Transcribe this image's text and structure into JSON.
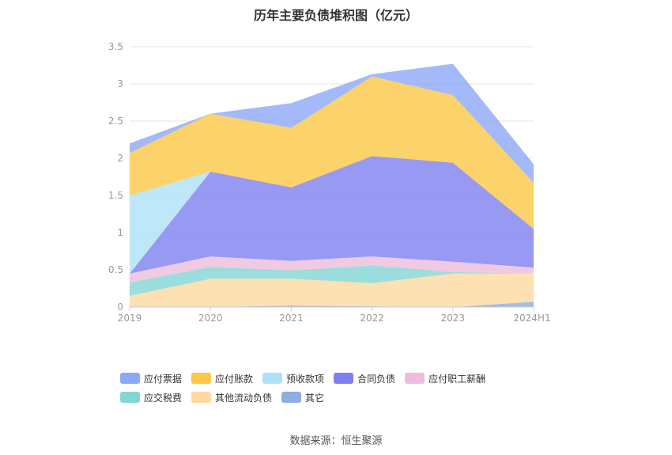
{
  "title": "历年主要负债堆积图（亿元）",
  "source": "数据来源：恒生聚源",
  "colors": {
    "应付票据": "#8ca8f7",
    "应付账款": "#fbc745",
    "预收款项": "#aee1f8",
    "合同负债": "#7e7ff0",
    "应付职工薪酬": "#ecbddc",
    "应交税费": "#82d6d4",
    "其他流动负债": "#fbd9a0",
    "其它": "#8fadde"
  },
  "chart_data": {
    "type": "area",
    "stacked": true,
    "categories": [
      "2019",
      "2020",
      "2021",
      "2022",
      "2023",
      "2024H1"
    ],
    "ylim": [
      0,
      3.5
    ],
    "yticks": [
      "0",
      "0.5",
      "1",
      "1.5",
      "2",
      "2.5",
      "3",
      "3.5"
    ],
    "grid": true,
    "legend_position": "bottom",
    "series": [
      {
        "name": "其它",
        "values": [
          0.0,
          0.0,
          0.02,
          0.01,
          0.0,
          0.07
        ]
      },
      {
        "name": "其他流动负债",
        "values": [
          0.15,
          0.38,
          0.36,
          0.31,
          0.45,
          0.38
        ]
      },
      {
        "name": "应交税费",
        "values": [
          0.18,
          0.16,
          0.11,
          0.24,
          0.02,
          0.0
        ]
      },
      {
        "name": "应付职工薪酬",
        "values": [
          0.12,
          0.14,
          0.13,
          0.12,
          0.14,
          0.08
        ]
      },
      {
        "name": "合同负债",
        "values": [
          0.0,
          1.14,
          0.99,
          1.35,
          1.33,
          0.52
        ]
      },
      {
        "name": "预收款项",
        "values": [
          1.05,
          0.0,
          0.0,
          0.0,
          0.0,
          0.0
        ]
      },
      {
        "name": "应付账款",
        "values": [
          0.57,
          0.78,
          0.8,
          1.07,
          0.91,
          0.62
        ]
      },
      {
        "name": "应付票据",
        "values": [
          0.13,
          0.0,
          0.33,
          0.03,
          0.42,
          0.25
        ]
      }
    ]
  }
}
